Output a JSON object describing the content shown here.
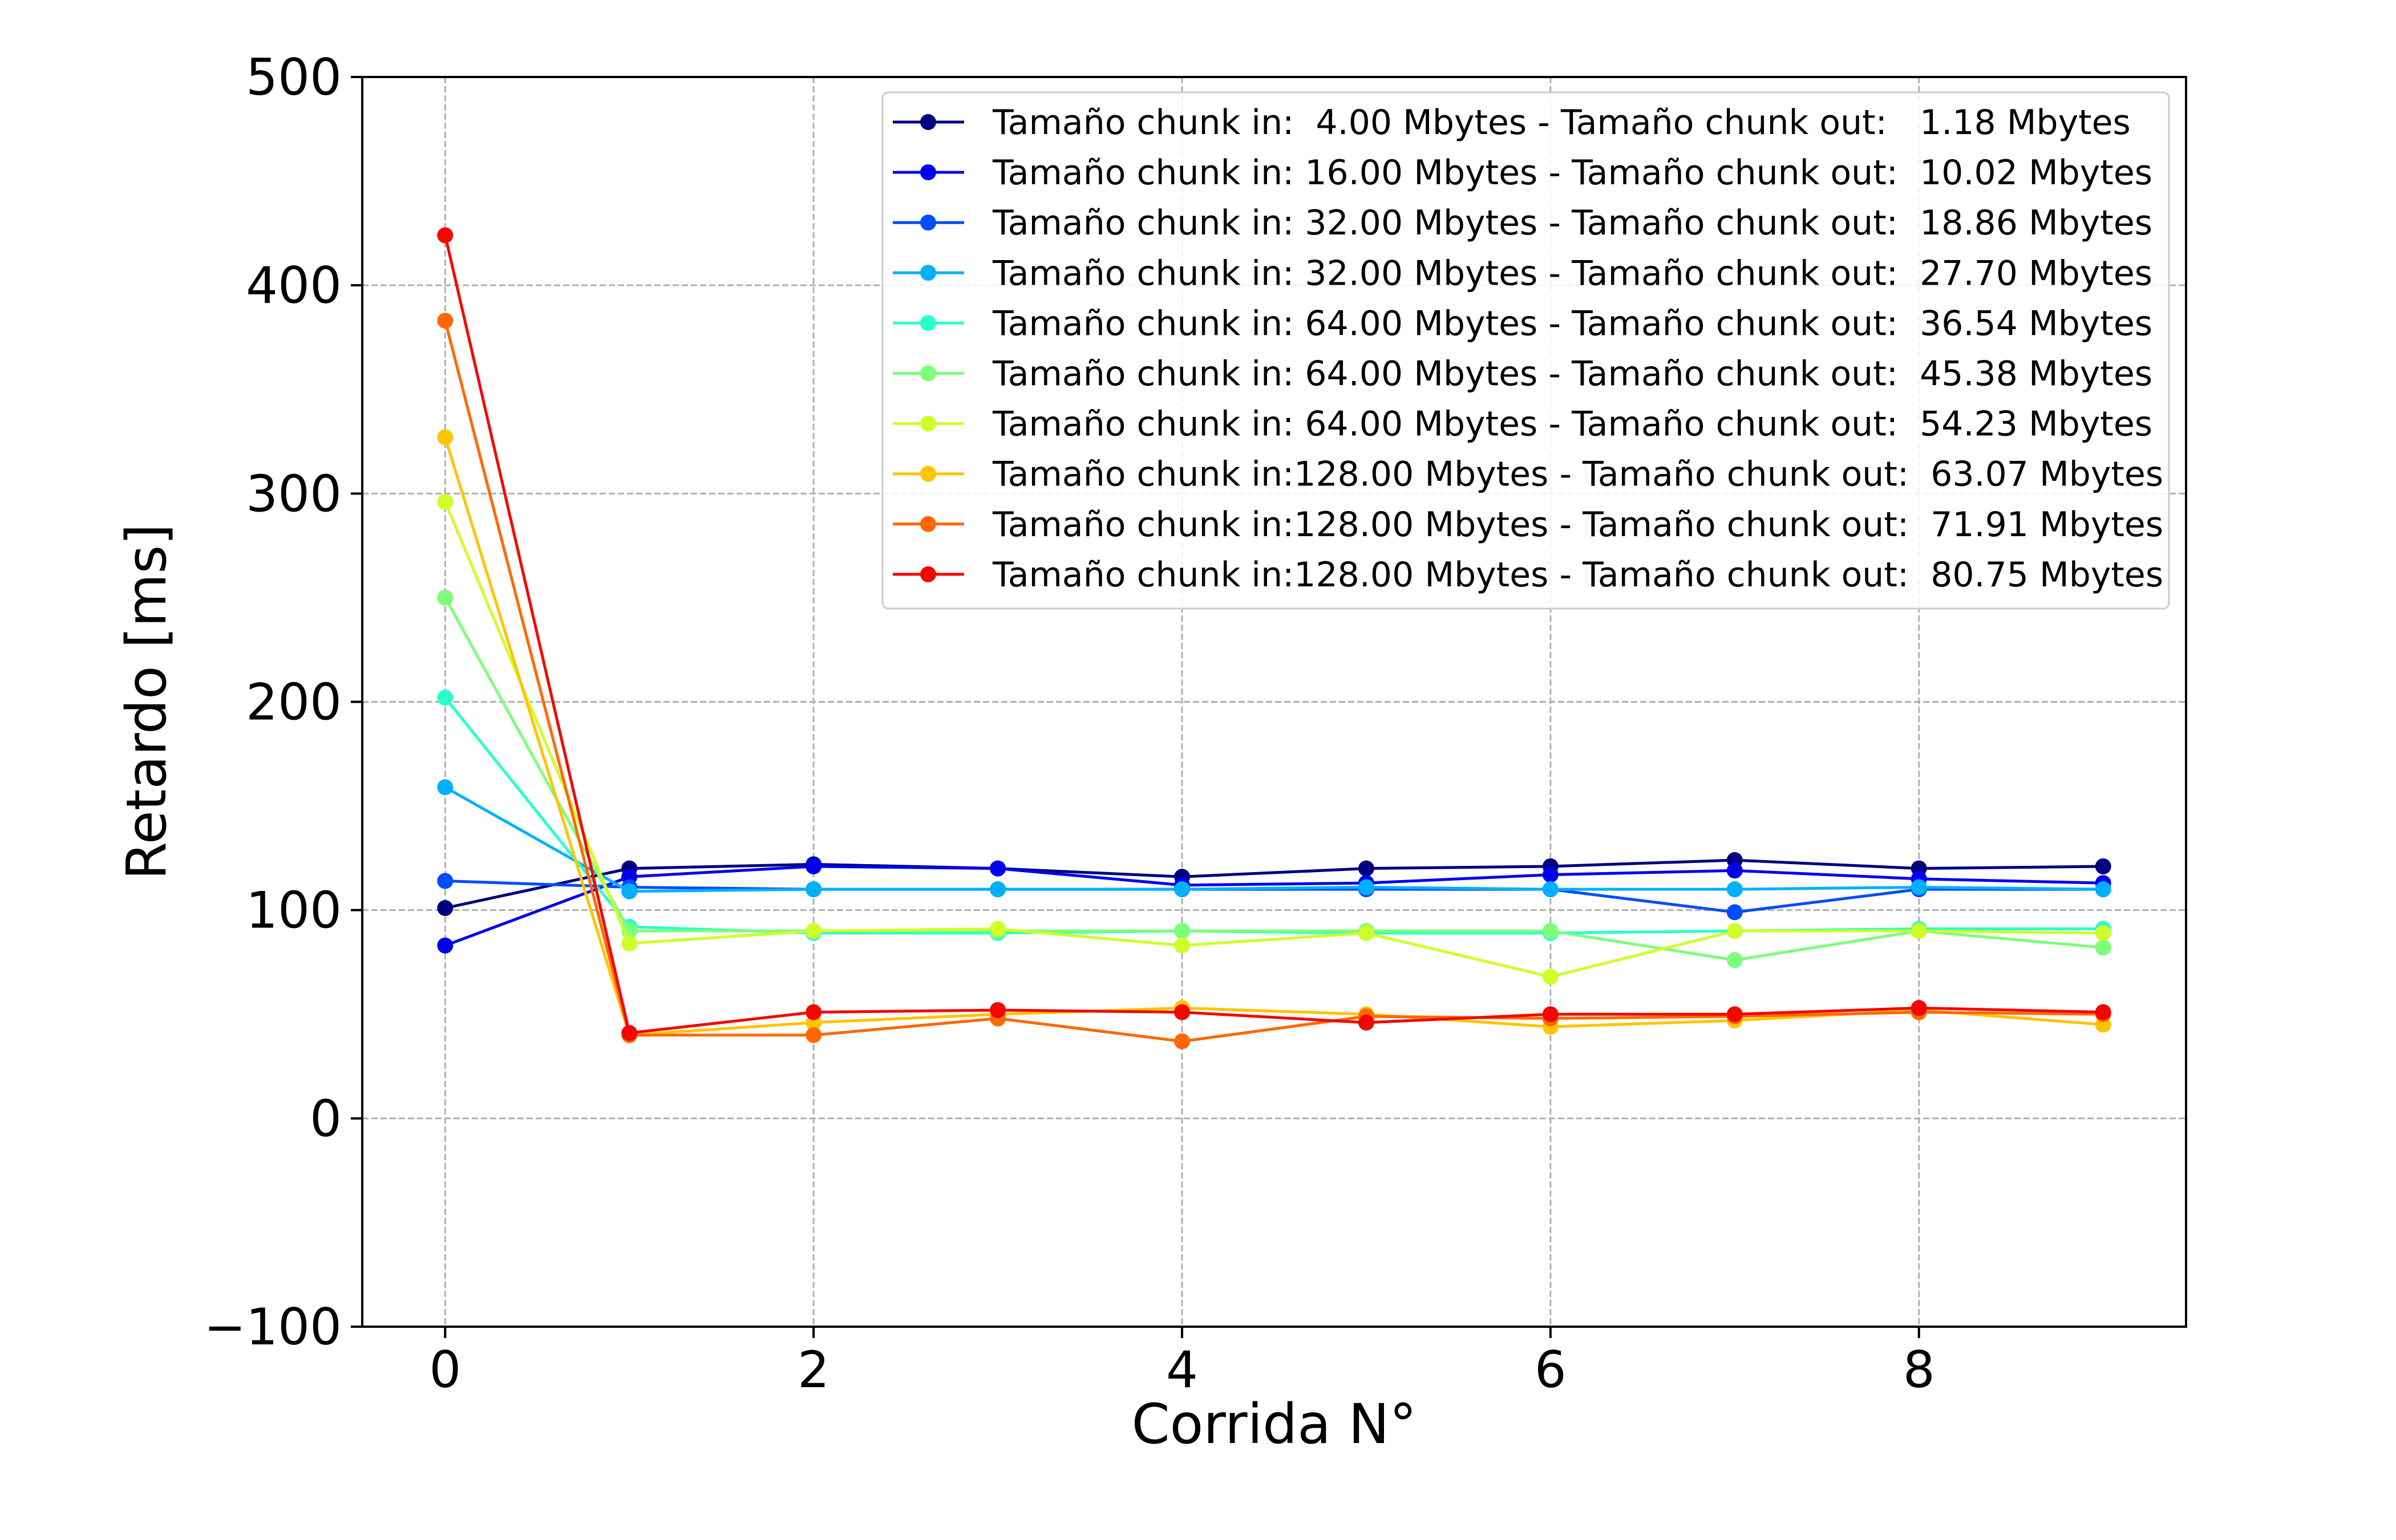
{
  "chart_data": {
    "type": "line",
    "xlabel": "Corrida N°",
    "ylabel": "Retardo [ms]",
    "xlim": [
      -0.45,
      9.45
    ],
    "ylim": [
      -100,
      500
    ],
    "xticks": [
      0,
      2,
      4,
      6,
      8
    ],
    "yticks": [
      -100,
      0,
      100,
      200,
      300,
      400,
      500
    ],
    "xtick_labels": [
      "0",
      "2",
      "4",
      "6",
      "8"
    ],
    "ytick_labels": [
      "−100",
      "0",
      "100",
      "200",
      "300",
      "400",
      "500"
    ],
    "grid": true,
    "legend_position": "top-right",
    "x": [
      0,
      1,
      2,
      3,
      4,
      5,
      6,
      7,
      8,
      9
    ],
    "series": [
      {
        "name": "Tamaño chunk in:  4.00 Mbytes - Tamaño chunk out:   1.18 Mbytes",
        "color": "#00007f",
        "values": [
          101,
          120,
          122,
          120,
          116,
          120,
          121,
          124,
          120,
          121
        ]
      },
      {
        "name": "Tamaño chunk in: 16.00 Mbytes - Tamaño chunk out:  10.02 Mbytes",
        "color": "#0000f1",
        "values": [
          83,
          116,
          121,
          120,
          112,
          113,
          117,
          119,
          115,
          113
        ]
      },
      {
        "name": "Tamaño chunk in: 32.00 Mbytes - Tamaño chunk out:  18.86 Mbytes",
        "color": "#004cff",
        "values": [
          114,
          111,
          110,
          110,
          110,
          110,
          110,
          99,
          110,
          110
        ]
      },
      {
        "name": "Tamaño chunk in: 32.00 Mbytes - Tamaño chunk out:  27.70 Mbytes",
        "color": "#00b0ff",
        "values": [
          159,
          109,
          110,
          110,
          110,
          111,
          110,
          110,
          111,
          110
        ]
      },
      {
        "name": "Tamaño chunk in: 64.00 Mbytes - Tamaño chunk out:  36.54 Mbytes",
        "color": "#29ffce",
        "values": [
          202,
          92,
          89,
          89,
          90,
          89,
          89,
          90,
          91,
          91
        ]
      },
      {
        "name": "Tamaño chunk in: 64.00 Mbytes - Tamaño chunk out:  45.38 Mbytes",
        "color": "#7dff7a",
        "values": [
          250,
          90,
          90,
          90,
          90,
          90,
          90,
          76,
          90,
          82
        ]
      },
      {
        "name": "Tamaño chunk in: 64.00 Mbytes - Tamaño chunk out:  54.23 Mbytes",
        "color": "#ceff29",
        "values": [
          296,
          84,
          90,
          91,
          83,
          89,
          68,
          90,
          90,
          89
        ]
      },
      {
        "name": "Tamaño chunk in:128.00 Mbytes - Tamaño chunk out:  63.07 Mbytes",
        "color": "#ffc400",
        "values": [
          327,
          40,
          46,
          50,
          53,
          50,
          44,
          47,
          52,
          45
        ]
      },
      {
        "name": "Tamaño chunk in:128.00 Mbytes - Tamaño chunk out:  71.91 Mbytes",
        "color": "#ff6800",
        "values": [
          383,
          40,
          40,
          48,
          37,
          49,
          48,
          49,
          51,
          50
        ]
      },
      {
        "name": "Tamaño chunk in:128.00 Mbytes - Tamaño chunk out:  80.75 Mbytes",
        "color": "#f10800",
        "values": [
          424,
          41,
          51,
          52,
          51,
          46,
          50,
          50,
          53,
          51
        ]
      }
    ]
  }
}
